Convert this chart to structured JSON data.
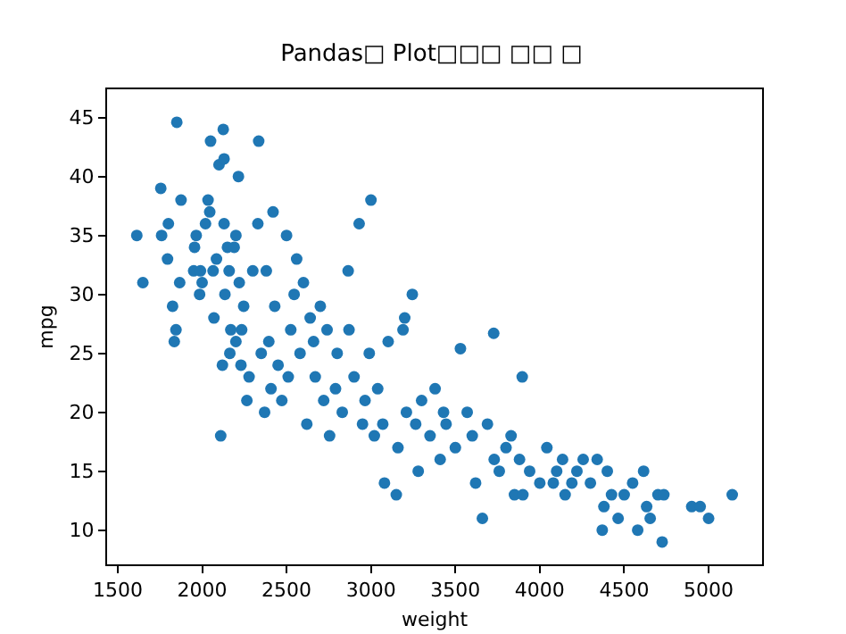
{
  "chart_data": {
    "type": "scatter",
    "title": "Pandas□ Plot□□□ □□ □",
    "xlabel": "weight",
    "ylabel": "mpg",
    "color": "#1f77b4",
    "marker": "circle",
    "grid": false,
    "xlim": [
      1437,
      5317
    ],
    "xticks": [
      1500,
      2000,
      2500,
      3000,
      3500,
      4000,
      4500,
      5000
    ],
    "ylim": [
      7.1,
      47.4
    ],
    "yticks": [
      10,
      15,
      20,
      25,
      30,
      35,
      40,
      45
    ],
    "x": [
      1613,
      1649,
      1755,
      1760,
      1795,
      1800,
      1825,
      1835,
      1845,
      1850,
      1867,
      1875,
      1950,
      1955,
      1965,
      1985,
      1990,
      2000,
      2020,
      2035,
      2045,
      2050,
      2065,
      2070,
      2085,
      2100,
      2110,
      2120,
      2125,
      2130,
      2130,
      2135,
      2150,
      2160,
      2164,
      2170,
      2190,
      2200,
      2200,
      2215,
      2220,
      2230,
      2234,
      2246,
      2265,
      2278,
      2300,
      2330,
      2335,
      2350,
      2370,
      2380,
      2395,
      2408,
      2420,
      2430,
      2450,
      2472,
      2500,
      2510,
      2525,
      2545,
      2560,
      2580,
      2600,
      2620,
      2640,
      2660,
      2670,
      2700,
      2720,
      2740,
      2755,
      2790,
      2800,
      2830,
      2865,
      2870,
      2900,
      2930,
      2950,
      2965,
      2990,
      3000,
      3020,
      3040,
      3070,
      3080,
      3102,
      3150,
      3160,
      3190,
      3200,
      3210,
      3245,
      3265,
      3280,
      3300,
      3350,
      3380,
      3410,
      3430,
      3445,
      3500,
      3530,
      3570,
      3600,
      3620,
      3660,
      3690,
      3727,
      3730,
      3760,
      3800,
      3830,
      3850,
      3880,
      3896,
      3900,
      3940,
      4000,
      4042,
      4080,
      4100,
      4135,
      4150,
      4190,
      4220,
      4257,
      4300,
      4340,
      4370,
      4380,
      4400,
      4425,
      4464,
      4500,
      4550,
      4580,
      4615,
      4633,
      4654,
      4700,
      4725,
      4735,
      4900,
      4950,
      5000,
      5140
    ],
    "values": [
      35,
      31,
      39,
      35,
      33,
      36,
      29,
      26,
      27,
      44.6,
      31,
      38,
      32,
      34,
      35,
      30,
      32,
      31,
      36,
      38,
      37,
      43,
      32,
      28,
      33,
      41,
      18,
      24,
      44,
      41.5,
      36,
      30,
      34,
      32,
      25,
      27,
      34,
      35,
      26,
      40,
      31,
      24,
      27,
      29,
      21,
      23,
      32,
      36,
      43,
      25,
      20,
      32,
      26,
      22,
      37,
      29,
      24,
      21,
      35,
      23,
      27,
      30,
      33,
      25,
      31,
      19,
      28,
      26,
      23,
      29,
      21,
      27,
      18,
      22,
      25,
      20,
      32,
      27,
      23,
      36,
      19,
      21,
      25,
      38,
      18,
      22,
      19,
      14,
      26,
      13,
      17,
      27,
      28,
      20,
      30,
      19,
      15,
      21,
      18,
      22,
      16,
      20,
      19,
      17,
      25.4,
      20,
      18,
      14,
      11,
      19,
      26.7,
      16,
      15,
      17,
      18,
      13,
      16,
      23,
      13,
      15,
      14,
      17,
      14,
      15,
      16,
      13,
      14,
      15,
      16,
      14,
      16,
      10,
      12,
      15,
      13,
      11,
      13,
      14,
      10,
      15,
      12,
      11,
      13,
      9,
      13,
      12,
      12,
      11,
      13
    ]
  }
}
